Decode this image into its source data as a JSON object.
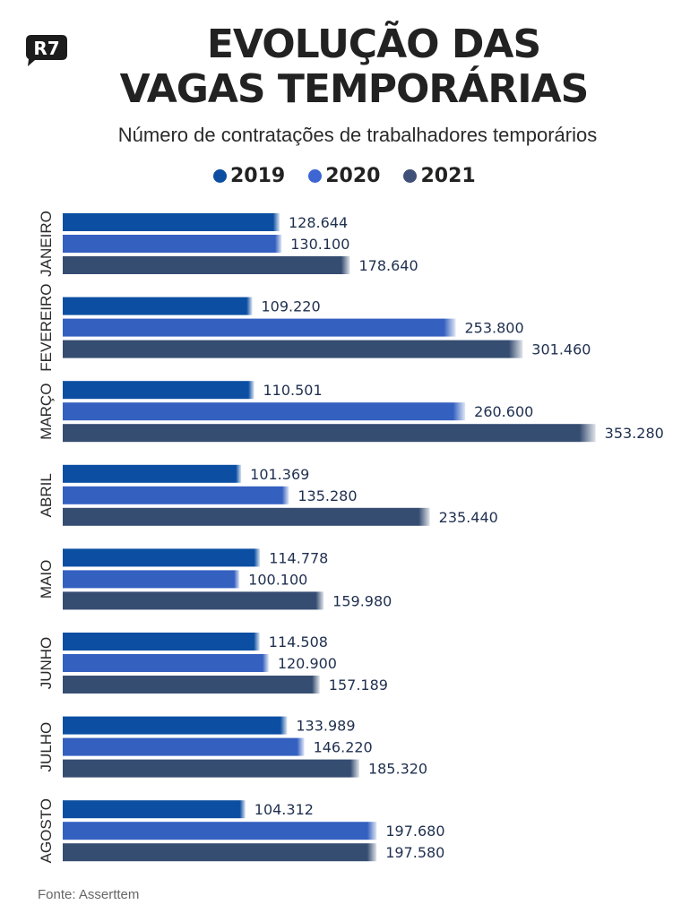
{
  "header": {
    "logo_text": "R7",
    "title_line1": "EVOLUÇÃO DAS",
    "title_line2": "VAGAS TEMPORÁRIAS",
    "subtitle": "Número de contratações de trabalhadores temporários"
  },
  "legend": [
    {
      "label": "2019",
      "color": "#0b4ea2"
    },
    {
      "label": "2020",
      "color": "#3460c0"
    },
    {
      "label": "2021",
      "color": "#364d72"
    }
  ],
  "source": "Fonte: Asserttem",
  "chart_data": {
    "type": "bar",
    "orientation": "horizontal",
    "title": "EVOLUÇÃO DAS VAGAS TEMPORÁRIAS",
    "subtitle": "Número de contratações de trabalhadores temporários",
    "xlabel": "",
    "ylabel": "",
    "legend_position": "top-center",
    "grid": false,
    "categories": [
      "JANEIRO",
      "FEVEREIRO",
      "MARÇO",
      "ABRIL",
      "MAIO",
      "JUNHO",
      "JULHO",
      "AGOSTO"
    ],
    "series": [
      {
        "name": "2019",
        "color": "#0b4ea2",
        "values": [
          128644,
          109220,
          110501,
          101369,
          114778,
          114508,
          133989,
          104312
        ],
        "labels": [
          "128.644",
          "109.220",
          "110.501",
          "101.369",
          "114.778",
          "114.508",
          "133.989",
          "104.312"
        ]
      },
      {
        "name": "2020",
        "color": "#3460c0",
        "values": [
          130100,
          253800,
          260600,
          135280,
          100100,
          120900,
          146220,
          197680
        ],
        "labels": [
          "130.100",
          "253.800",
          "260.600",
          "135.280",
          "100.100",
          "120.900",
          "146.220",
          "197.680"
        ]
      },
      {
        "name": "2021",
        "color": "#364d72",
        "values": [
          178640,
          301460,
          353280,
          235440,
          159980,
          157189,
          185320,
          197580
        ],
        "labels": [
          "178.640",
          "301.460",
          "353.280",
          "235.440",
          "159.980",
          "157.189",
          "185.320",
          "197.580"
        ]
      }
    ],
    "xlim": [
      0,
      360000
    ]
  }
}
